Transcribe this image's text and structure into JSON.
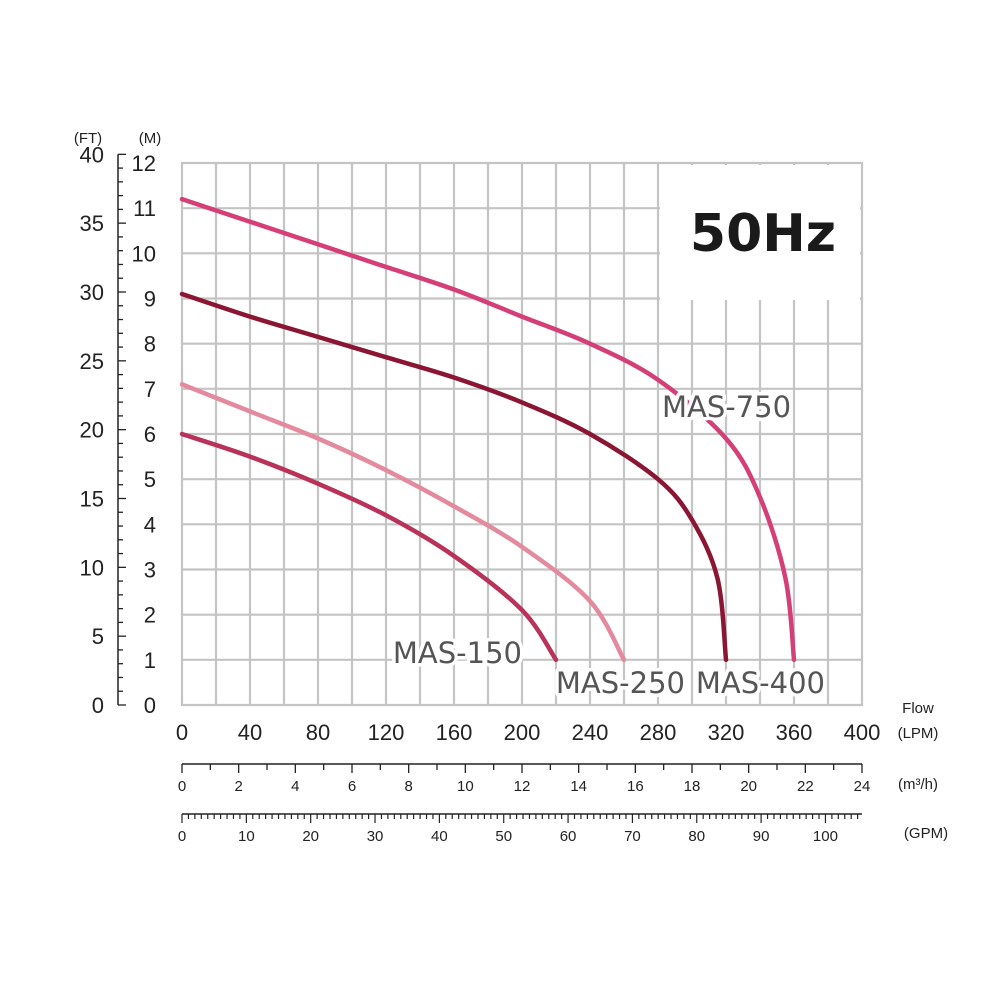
{
  "chart_data": {
    "type": "line",
    "frequency_label": "50Hz",
    "x_primary": {
      "unit": "(LPM)",
      "title": "Flow",
      "ticks": [
        0,
        40,
        80,
        120,
        160,
        200,
        240,
        280,
        320,
        360,
        400
      ],
      "range": [
        0,
        400
      ]
    },
    "x_secondary_m3h": {
      "unit": "(m³/h)",
      "ticks": [
        0,
        2,
        4,
        6,
        8,
        10,
        12,
        14,
        16,
        18,
        20,
        22,
        24
      ]
    },
    "x_secondary_gpm": {
      "unit": "(GPM)",
      "ticks": [
        0,
        10,
        20,
        30,
        40,
        50,
        60,
        70,
        80,
        90,
        100
      ]
    },
    "y_primary": {
      "unit": "(M)",
      "ticks": [
        0,
        1,
        2,
        3,
        4,
        5,
        6,
        7,
        8,
        9,
        10,
        11,
        12
      ],
      "range": [
        0,
        12
      ]
    },
    "y_secondary_ft": {
      "unit": "(FT)",
      "ticks": [
        0,
        5,
        10,
        15,
        20,
        25,
        30,
        35,
        40
      ]
    },
    "grid": true,
    "series": [
      {
        "name": "MAS-750",
        "color": "#d43f78",
        "points": [
          [
            0,
            11.2
          ],
          [
            40,
            10.7
          ],
          [
            80,
            10.2
          ],
          [
            120,
            9.7
          ],
          [
            160,
            9.2
          ],
          [
            200,
            8.6
          ],
          [
            240,
            8.0
          ],
          [
            280,
            7.2
          ],
          [
            320,
            5.9
          ],
          [
            340,
            4.6
          ],
          [
            355,
            2.8
          ],
          [
            360,
            1.0
          ]
        ]
      },
      {
        "name": "MAS-400",
        "color": "#8a1634",
        "points": [
          [
            0,
            9.1
          ],
          [
            40,
            8.6
          ],
          [
            80,
            8.15
          ],
          [
            120,
            7.7
          ],
          [
            160,
            7.25
          ],
          [
            200,
            6.7
          ],
          [
            240,
            6.0
          ],
          [
            280,
            5.0
          ],
          [
            300,
            4.1
          ],
          [
            315,
            2.8
          ],
          [
            320,
            1.0
          ]
        ]
      },
      {
        "name": "MAS-250",
        "color": "#e38a9e",
        "points": [
          [
            0,
            7.1
          ],
          [
            40,
            6.5
          ],
          [
            80,
            5.9
          ],
          [
            120,
            5.2
          ],
          [
            160,
            4.4
          ],
          [
            200,
            3.5
          ],
          [
            240,
            2.3
          ],
          [
            260,
            1.0
          ]
        ]
      },
      {
        "name": "MAS-150",
        "color": "#b8325a",
        "points": [
          [
            0,
            6.0
          ],
          [
            40,
            5.5
          ],
          [
            80,
            4.9
          ],
          [
            120,
            4.2
          ],
          [
            160,
            3.3
          ],
          [
            200,
            2.1
          ],
          [
            220,
            1.0
          ]
        ]
      }
    ]
  }
}
